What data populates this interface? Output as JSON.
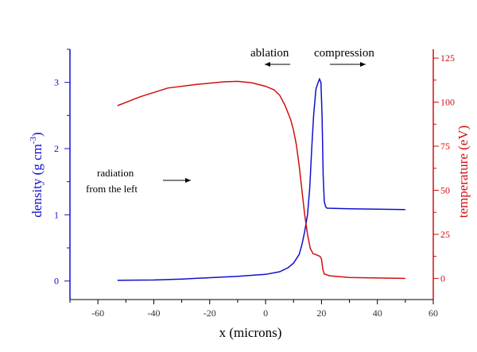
{
  "chart_data": {
    "type": "line",
    "xlabel": "x (microns)",
    "ylabel_left": "density (g cm",
    "ylabel_left_sup": "-3",
    "ylabel_left_close": ")",
    "ylabel_right": "temperature (eV)",
    "xlim": [
      -70,
      60
    ],
    "ylim_left": [
      -0.28,
      3.5
    ],
    "ylim_right": [
      -12,
      130
    ],
    "x_ticks": [
      -60,
      -40,
      -20,
      0,
      20,
      40,
      60
    ],
    "y_left_ticks": [
      0,
      1,
      2,
      3
    ],
    "y_right_ticks": [
      0,
      25,
      50,
      75,
      100,
      125
    ],
    "colors": {
      "density": "#1010d0",
      "temperature": "#d01010"
    },
    "series": [
      {
        "name": "density",
        "axis": "left",
        "x": [
          -53,
          -40,
          -30,
          -20,
          -10,
          0,
          5,
          8,
          10,
          12,
          13,
          14,
          15,
          15.8,
          16.5,
          17.2,
          18,
          18.8,
          19.3,
          19.8,
          20.2,
          20.6,
          21,
          21.5,
          22,
          30,
          50
        ],
        "y": [
          0.01,
          0.015,
          0.03,
          0.05,
          0.07,
          0.1,
          0.14,
          0.2,
          0.27,
          0.4,
          0.55,
          0.75,
          1.0,
          1.4,
          2.0,
          2.5,
          2.9,
          3.0,
          3.05,
          3.0,
          2.5,
          1.6,
          1.2,
          1.12,
          1.1,
          1.09,
          1.08
        ]
      },
      {
        "name": "temperature",
        "axis": "right",
        "x": [
          -53,
          -45,
          -35,
          -25,
          -15,
          -10,
          -5,
          0,
          3,
          5,
          7,
          9,
          10,
          11,
          12,
          13,
          14,
          15,
          16,
          17,
          18,
          19.5,
          20,
          20.5,
          21,
          23,
          30,
          50
        ],
        "y": [
          98,
          103,
          108,
          110,
          111.5,
          111.8,
          111,
          109,
          107,
          104,
          98,
          90,
          84,
          76,
          64,
          50,
          36,
          25,
          17,
          14,
          13.5,
          12.5,
          11,
          5,
          2.5,
          1.5,
          0.5,
          0
        ]
      }
    ],
    "annotations": [
      {
        "text": "ablation",
        "arrow": "left"
      },
      {
        "text": "compression",
        "arrow": "right"
      },
      {
        "text": "radiation",
        "text2": "from the left",
        "arrow": "right"
      }
    ]
  }
}
